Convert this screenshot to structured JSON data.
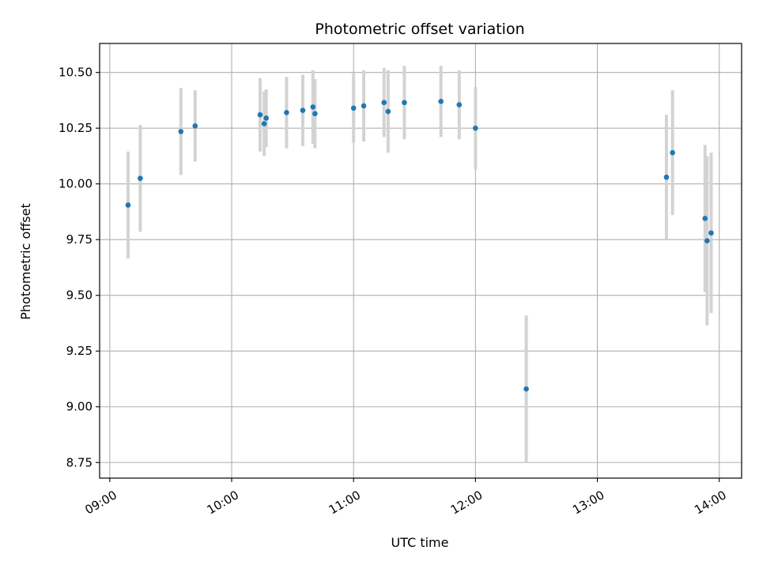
{
  "chart_data": {
    "type": "scatter",
    "title": "Photometric offset variation",
    "xlabel": "UTC time",
    "ylabel": "Photometric offset",
    "x_unit": "UTC time (HH:MM)",
    "xlim": [
      "08:55",
      "14:11"
    ],
    "ylim": [
      8.68,
      10.63
    ],
    "x_ticks": [
      "09:00",
      "10:00",
      "11:00",
      "12:00",
      "13:00",
      "14:00"
    ],
    "y_ticks": [
      "8.75",
      "9.00",
      "9.25",
      "9.50",
      "9.75",
      "10.00",
      "10.25",
      "10.50"
    ],
    "grid": true,
    "marker_color": "#1f77b4",
    "errorbar_color": "#d3d3d3",
    "series": [
      {
        "points": [
          {
            "x": "09:09",
            "y": 9.905,
            "err": 0.24
          },
          {
            "x": "09:15",
            "y": 10.025,
            "err": 0.24
          },
          {
            "x": "09:35",
            "y": 10.235,
            "err": 0.195
          },
          {
            "x": "09:42",
            "y": 10.26,
            "err": 0.16
          },
          {
            "x": "10:14",
            "y": 10.31,
            "err": 0.165
          },
          {
            "x": "10:16",
            "y": 10.27,
            "err": 0.145
          },
          {
            "x": "10:17",
            "y": 10.295,
            "err": 0.13
          },
          {
            "x": "10:27",
            "y": 10.32,
            "err": 0.16
          },
          {
            "x": "10:35",
            "y": 10.33,
            "err": 0.16
          },
          {
            "x": "10:40",
            "y": 10.345,
            "err": 0.165
          },
          {
            "x": "10:41",
            "y": 10.315,
            "err": 0.155
          },
          {
            "x": "11:00",
            "y": 10.34,
            "err": 0.155
          },
          {
            "x": "11:05",
            "y": 10.35,
            "err": 0.16
          },
          {
            "x": "11:15",
            "y": 10.365,
            "err": 0.155
          },
          {
            "x": "11:17",
            "y": 10.325,
            "err": 0.185
          },
          {
            "x": "11:25",
            "y": 10.365,
            "err": 0.165
          },
          {
            "x": "11:43",
            "y": 10.37,
            "err": 0.16
          },
          {
            "x": "11:52",
            "y": 10.355,
            "err": 0.155
          },
          {
            "x": "12:00",
            "y": 10.25,
            "err": 0.185
          },
          {
            "x": "12:25",
            "y": 9.08,
            "err": 0.33
          },
          {
            "x": "13:34",
            "y": 10.03,
            "err": 0.28
          },
          {
            "x": "13:37",
            "y": 10.14,
            "err": 0.28
          },
          {
            "x": "13:53",
            "y": 9.845,
            "err": 0.33
          },
          {
            "x": "13:54",
            "y": 9.745,
            "err": 0.38
          },
          {
            "x": "13:56",
            "y": 9.78,
            "err": 0.36
          }
        ]
      }
    ]
  }
}
